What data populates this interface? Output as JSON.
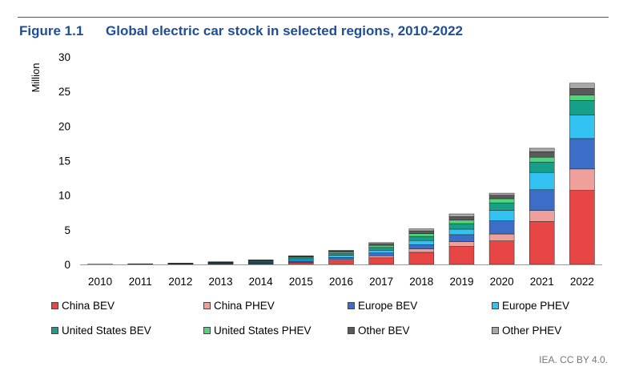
{
  "figure": {
    "number": "Figure 1.1",
    "title": "Global electric car stock in selected regions, 2010-2022"
  },
  "source": "IEA. CC BY 4.0.",
  "chart_data": {
    "type": "bar",
    "stacked": true,
    "ylabel": "Million",
    "ylim": [
      0,
      30
    ],
    "yticks": [
      0,
      5,
      10,
      15,
      20,
      25,
      30
    ],
    "grid": false,
    "legend_position": "bottom",
    "categories": [
      "2010",
      "2011",
      "2012",
      "2013",
      "2014",
      "2015",
      "2016",
      "2017",
      "2018",
      "2019",
      "2020",
      "2021",
      "2022"
    ],
    "series": [
      {
        "name": "China BEV",
        "color": "#e84545",
        "values": [
          0.01,
          0.02,
          0.03,
          0.05,
          0.1,
          0.25,
          0.5,
          0.95,
          1.75,
          2.6,
          3.4,
          6.2,
          10.7
        ]
      },
      {
        "name": "China PHEV",
        "color": "#f0a09a",
        "values": [
          0.0,
          0.0,
          0.01,
          0.02,
          0.05,
          0.1,
          0.2,
          0.3,
          0.5,
          0.7,
          1.0,
          1.6,
          3.1
        ]
      },
      {
        "name": "Europe BEV",
        "color": "#3c6ec8",
        "values": [
          0.01,
          0.02,
          0.03,
          0.06,
          0.1,
          0.2,
          0.3,
          0.4,
          0.6,
          1.0,
          1.9,
          3.0,
          4.4
        ]
      },
      {
        "name": "Europe PHEV",
        "color": "#33c3f2",
        "values": [
          0.0,
          0.01,
          0.02,
          0.05,
          0.1,
          0.2,
          0.3,
          0.4,
          0.6,
          0.8,
          1.5,
          2.5,
          3.4
        ]
      },
      {
        "name": "United States BEV",
        "color": "#16a08a",
        "values": [
          0.01,
          0.02,
          0.04,
          0.08,
          0.12,
          0.2,
          0.3,
          0.4,
          0.6,
          0.8,
          1.1,
          1.5,
          2.1
        ]
      },
      {
        "name": "United States PHEV",
        "color": "#4dd77a",
        "values": [
          0.0,
          0.01,
          0.03,
          0.07,
          0.1,
          0.15,
          0.2,
          0.3,
          0.4,
          0.5,
          0.6,
          0.7,
          0.8
        ]
      },
      {
        "name": "Other BEV",
        "color": "#5a5a5a",
        "values": [
          0.01,
          0.01,
          0.02,
          0.04,
          0.06,
          0.1,
          0.15,
          0.25,
          0.4,
          0.5,
          0.5,
          0.8,
          0.95
        ]
      },
      {
        "name": "Other PHEV",
        "color": "#a8a8a8",
        "values": [
          0.0,
          0.0,
          0.01,
          0.02,
          0.04,
          0.05,
          0.1,
          0.15,
          0.3,
          0.4,
          0.3,
          0.5,
          0.75
        ]
      }
    ]
  }
}
